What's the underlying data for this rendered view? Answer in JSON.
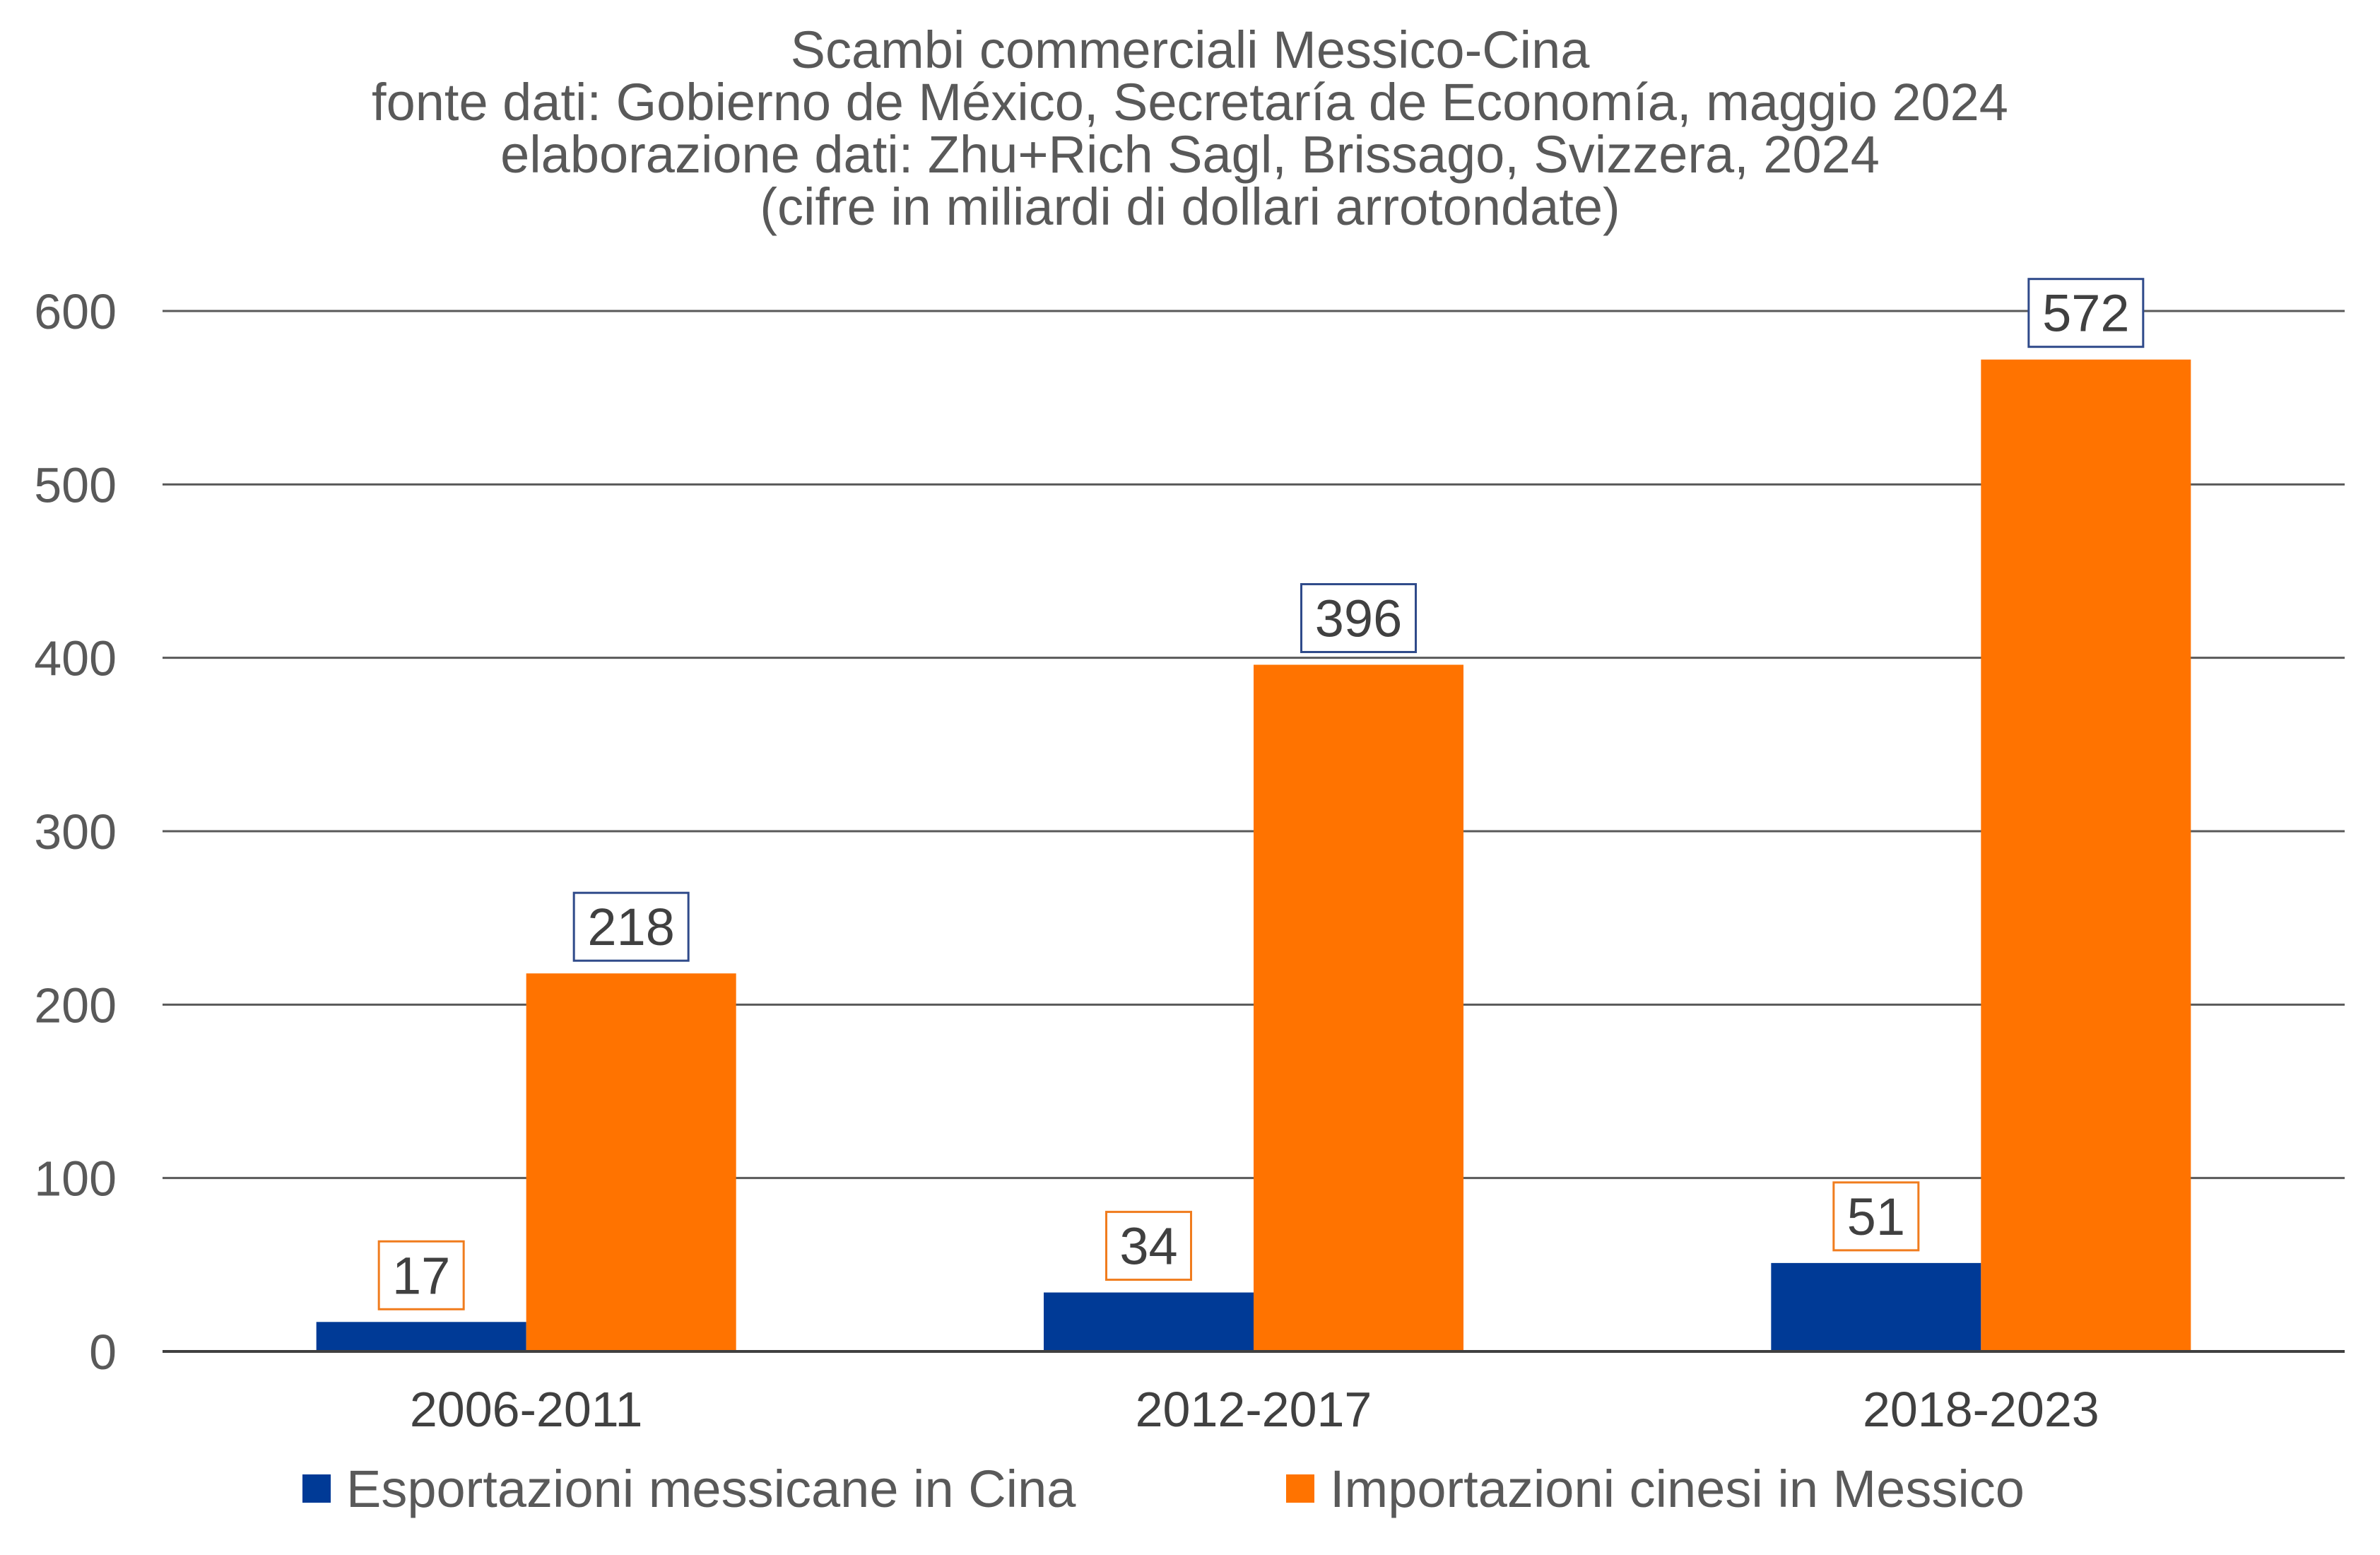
{
  "chart_data": {
    "type": "bar",
    "title_lines": [
      "Scambi commerciali Messico-Cina",
      "fonte dati: Gobierno de México, Secretaría de Economía, maggio 2024",
      "elaborazione dati: Zhu+Rich Sagl, Brissago, Svizzera, 2024",
      "(cifre in miliardi di dollari arrotondate)"
    ],
    "categories": [
      "2006-2011",
      "2012-2017",
      "2018-2023"
    ],
    "series": [
      {
        "name": "Esportazioni messicane in Cina",
        "values": [
          17,
          34,
          51
        ],
        "color": "#003a96",
        "label_border_color": "#f07c1e"
      },
      {
        "name": "Importazioni cinesi in Messico",
        "values": [
          218,
          396,
          572
        ],
        "color": "#ff7300",
        "label_border_color": "#2f4a8a"
      }
    ],
    "yticks": [
      "0",
      "100",
      "200",
      "300",
      "400",
      "500",
      "600"
    ],
    "ylim": [
      0,
      600
    ],
    "xlabel": "",
    "ylabel": "",
    "grid": true,
    "legend_position": "bottom"
  }
}
